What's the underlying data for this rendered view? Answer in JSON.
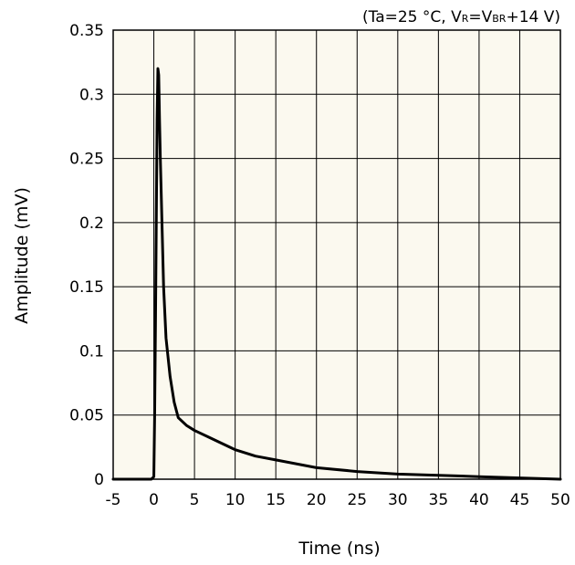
{
  "chart_data": {
    "type": "line",
    "title": "",
    "condition": {
      "prefix": "(Ta=25 °C, V",
      "vr_sub": "R",
      "mid": "=V",
      "vbr_sub": "BR",
      "suffix": "+14 V)"
    },
    "xlabel": "Time (ns)",
    "ylabel": "Amplitude (mV)",
    "xlim": [
      -5,
      50
    ],
    "ylim": [
      0,
      0.35
    ],
    "xticks": [
      -5,
      0,
      5,
      10,
      15,
      20,
      25,
      30,
      35,
      40,
      45,
      50
    ],
    "xtick_labels": [
      "-5",
      "0",
      "5",
      "10",
      "15",
      "20",
      "25",
      "30",
      "35",
      "40",
      "45",
      "50"
    ],
    "yticks": [
      0,
      0.05,
      0.1,
      0.15,
      0.2,
      0.25,
      0.3,
      0.35
    ],
    "ytick_labels": [
      "0",
      "0.05",
      "0.1",
      "0.15",
      "0.2",
      "0.25",
      "0.3",
      "0.35"
    ],
    "grid": true,
    "background_color": "#fbf9ef",
    "line_color": "#000000",
    "series": [
      {
        "x": [
          -5,
          -0.3,
          0,
          0.1,
          0.2,
          0.3,
          0.4,
          0.5,
          0.6,
          0.7,
          0.8,
          1.0,
          1.2,
          1.5,
          2.0,
          2.5,
          3.0,
          4.0,
          5.0,
          7.0,
          10.0,
          12.5,
          15.0,
          20.0,
          25.0,
          30.0,
          35.0,
          40.0,
          45.0,
          50.0
        ],
        "y": [
          0,
          0,
          0.002,
          0.05,
          0.12,
          0.2,
          0.28,
          0.32,
          0.315,
          0.28,
          0.25,
          0.2,
          0.15,
          0.11,
          0.08,
          0.06,
          0.048,
          0.042,
          0.038,
          0.032,
          0.023,
          0.018,
          0.015,
          0.009,
          0.006,
          0.004,
          0.003,
          0.002,
          0.001,
          0.0
        ]
      }
    ]
  }
}
